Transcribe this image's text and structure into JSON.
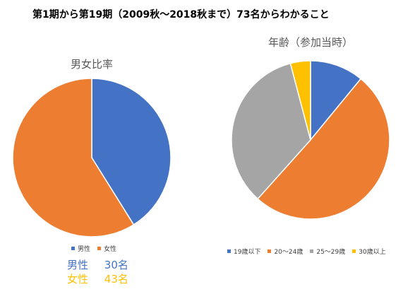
{
  "title": "第1期から第19期（2009秋〜2018秋まで）73名からわかること",
  "colors": {
    "blue": "#4472C4",
    "orange": "#ED7D31",
    "gray": "#A5A5A5",
    "yellow": "#FFC000",
    "title_gray": "#595959"
  },
  "chart_data": [
    {
      "type": "pie",
      "title": "男女比率",
      "categories": [
        "男性",
        "女性"
      ],
      "values": [
        30,
        43
      ],
      "colors": [
        "#4472C4",
        "#ED7D31"
      ],
      "legend": "bottom"
    },
    {
      "type": "pie",
      "title": "年齢（参加当時）",
      "categories": [
        "19歳以下",
        "20〜24歳",
        "25〜29歳",
        "30歳以上"
      ],
      "values": [
        8,
        37,
        25,
        3
      ],
      "colors": [
        "#4472C4",
        "#ED7D31",
        "#A5A5A5",
        "#FFC000"
      ],
      "legend": "bottom"
    }
  ],
  "notes": [
    {
      "label": "男性",
      "count": "30名",
      "color": "#4472C4"
    },
    {
      "label": "女性",
      "count": "43名",
      "color": "#FFC000"
    }
  ]
}
